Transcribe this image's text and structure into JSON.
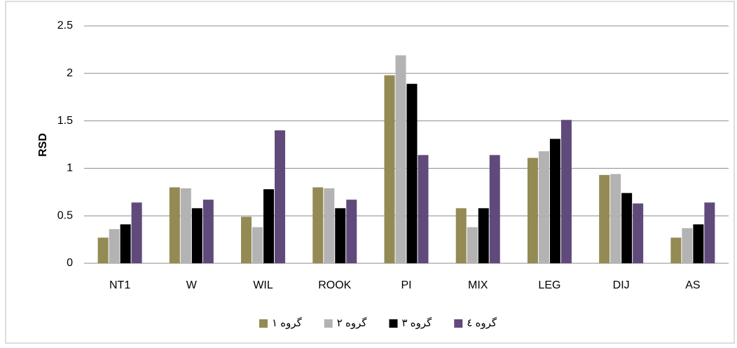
{
  "chart_data": {
    "type": "bar",
    "y_label": "RSD",
    "categories": [
      "NT1",
      "W",
      "WIL",
      "ROOK",
      "PI",
      "MIX",
      "LEG",
      "DIJ",
      "AS"
    ],
    "series": [
      {
        "name": "گروه ١",
        "color": "#948a54",
        "values": [
          0.27,
          0.8,
          0.49,
          0.8,
          1.98,
          0.58,
          1.11,
          0.93,
          0.27
        ]
      },
      {
        "name": "گروه ٢",
        "color": "#b3b3b3",
        "values": [
          0.36,
          0.79,
          0.38,
          0.79,
          2.19,
          0.38,
          1.18,
          0.94,
          0.37
        ]
      },
      {
        "name": "گروه ٣",
        "color": "#000000",
        "values": [
          0.41,
          0.58,
          0.78,
          0.58,
          1.89,
          0.58,
          1.31,
          0.74,
          0.41
        ]
      },
      {
        "name": "گروه ٤",
        "color": "#604a7b",
        "values": [
          0.64,
          0.67,
          1.4,
          0.67,
          1.14,
          1.14,
          1.51,
          0.63,
          0.64
        ]
      }
    ],
    "ylim": [
      0,
      2.5
    ],
    "yticks": [
      0,
      0.5,
      1,
      1.5,
      2,
      2.5
    ],
    "grid": true,
    "legend": "bottom"
  }
}
